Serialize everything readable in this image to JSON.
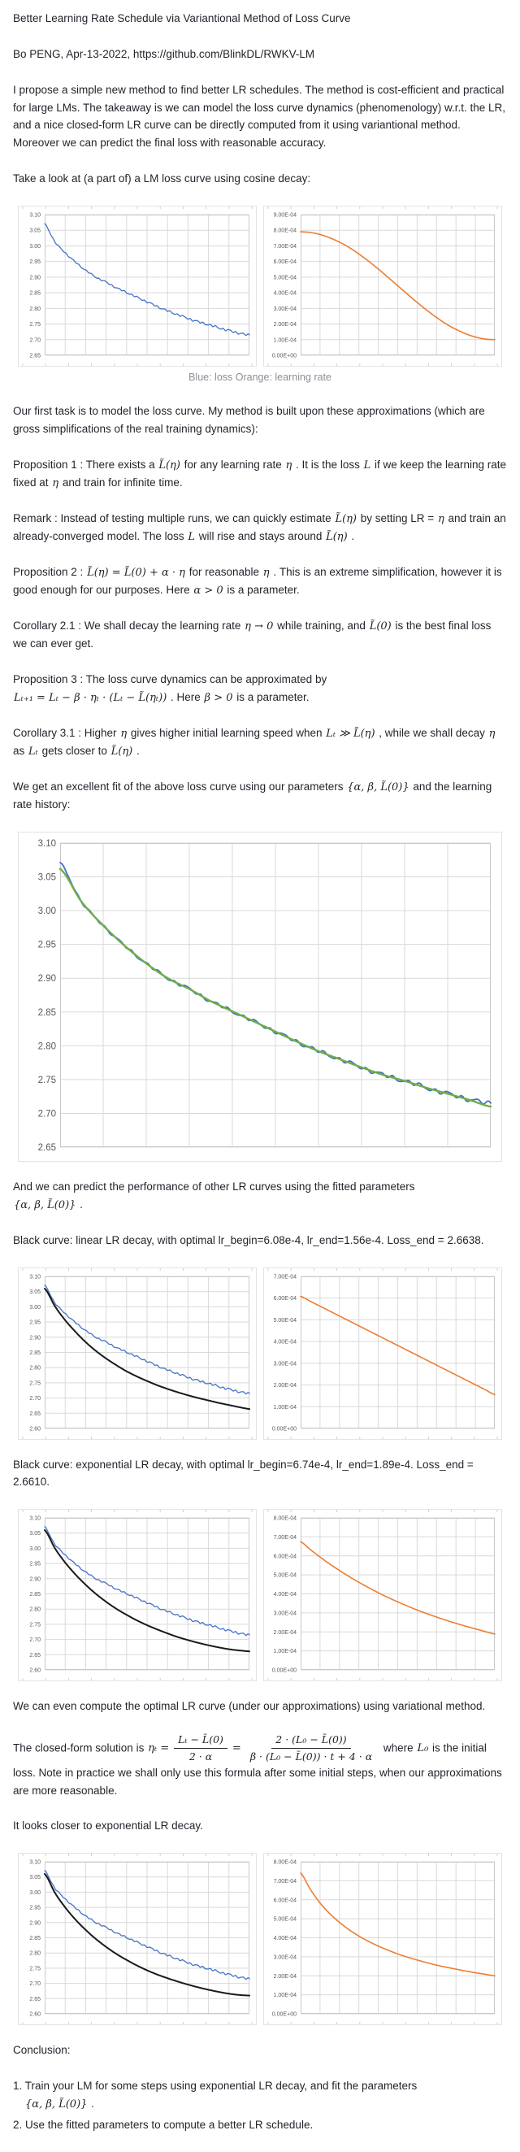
{
  "texts": {
    "title": "Better Learning Rate Schedule via Variantional Method of Loss Curve",
    "byline": "Bo PENG, Apr-13-2022, https://github.com/BlinkDL/RWKV-LM",
    "p_intro": "I propose a simple new method to find better LR schedules. The method is cost-efficient and practical for large LMs. The takeaway is we can model the loss curve dynamics (phenomenology) w.r.t. the LR, and a nice closed-form LR curve can be directly computed from it using variantional method. Moreover we can predict the final loss with reasonable accuracy.",
    "p_take_look": "Take a look at (a part of) a LM loss curve using cosine decay:",
    "caption_pair1": "Blue: loss Orange: learning rate",
    "p_first_task": "Our first task is to model the loss curve. My method is built upon these approximations (which are gross simplifications of the real training dynamics):",
    "p_black_linear": "Black curve: linear LR decay, with optimal lr_begin=6.08e-4, lr_end=1.56e-4. Loss_end = 2.6638.",
    "p_black_exp": "Black curve: exponential LR decay, with optimal lr_begin=6.74e-4, lr_end=1.89e-4. Loss_end = 2.6610.",
    "p_variational": "We can even compute the optimal LR curve (under our approximations) using variational method.",
    "p_closer_exp": "It looks closer to exponential LR decay.",
    "conclusion_heading": "Conclusion:"
  },
  "rich": {
    "prop1": [
      [
        "t",
        "Proposition 1 : There exists a "
      ],
      [
        "m",
        "L̃(η)"
      ],
      [
        "t",
        " for any learning rate "
      ],
      [
        "m",
        "η"
      ],
      [
        "t",
        " . It is the loss "
      ],
      [
        "m",
        "L"
      ],
      [
        "t",
        " if we keep the learning rate fixed at "
      ],
      [
        "m",
        "η"
      ],
      [
        "t",
        " and train for infinite time."
      ]
    ],
    "remark": [
      [
        "t",
        "Remark : Instead of testing multiple runs, we can quickly estimate "
      ],
      [
        "m",
        "L̃(η)"
      ],
      [
        "t",
        " by setting LR = "
      ],
      [
        "m",
        "η"
      ],
      [
        "t",
        " and train an already-converged model. The loss "
      ],
      [
        "m",
        "L"
      ],
      [
        "t",
        " will rise and stays around "
      ],
      [
        "m",
        "L̃(η)"
      ],
      [
        "t",
        " ."
      ]
    ],
    "prop2": [
      [
        "t",
        "Proposition 2 : "
      ],
      [
        "m",
        "L̃(η) = L̃(0) + α · η"
      ],
      [
        "t",
        " for reasonable "
      ],
      [
        "m",
        "η"
      ],
      [
        "t",
        " . This is an extreme simplification, however it is good enough for our purposes. Here "
      ],
      [
        "m",
        "α > 0"
      ],
      [
        "t",
        " is a parameter."
      ]
    ],
    "cor21": [
      [
        "t",
        "Corollary 2.1 : We shall decay the learning rate "
      ],
      [
        "m",
        "η → 0"
      ],
      [
        "t",
        " while training, and "
      ],
      [
        "m",
        "L̃(0)"
      ],
      [
        "t",
        " is the best final loss we can ever get."
      ]
    ],
    "prop3": [
      [
        "t",
        "Proposition 3 : The loss curve dynamics can be approximated by "
      ],
      [
        "b"
      ],
      [
        "m",
        "Lₜ₊₁ = Lₜ − β · ηₜ · (Lₜ − L̃(ηₜ))"
      ],
      [
        "t",
        " . Here "
      ],
      [
        "m",
        "β > 0"
      ],
      [
        "t",
        " is a parameter."
      ]
    ],
    "cor31": [
      [
        "t",
        "Corollary 3.1 : Higher "
      ],
      [
        "m",
        "η"
      ],
      [
        "t",
        " gives higher initial learning speed when "
      ],
      [
        "m",
        "Lₜ ≫ L̃(η)"
      ],
      [
        "t",
        " , while we shall decay "
      ],
      [
        "m",
        "η"
      ],
      [
        "t",
        " as "
      ],
      [
        "m",
        "Lₜ"
      ],
      [
        "t",
        " gets closer to "
      ],
      [
        "m",
        "L̃(η)"
      ],
      [
        "t",
        " ."
      ]
    ],
    "p_fit": [
      [
        "t",
        "We get an excellent fit of the above loss curve using our parameters "
      ],
      [
        "m",
        "{α, β, L̃(0)}"
      ],
      [
        "t",
        " and the learning rate history:"
      ]
    ],
    "p_predict": [
      [
        "t",
        "And we can predict the performance of other LR curves using the fitted parameters "
      ],
      [
        "b"
      ],
      [
        "m",
        "{α, β, L̃(0)}"
      ],
      [
        "t",
        " ."
      ]
    ],
    "formula": [
      [
        "t",
        "The closed-form solution is "
      ],
      [
        "m",
        "ηₜ ="
      ],
      [
        "f",
        "Lₜ − L̃(0)",
        "2 · α"
      ],
      [
        "m",
        "="
      ],
      [
        "f",
        "2 · (L₀ − L̃(0))",
        "β · (L₀ − L̃(0)) · t + 4 · α"
      ],
      [
        "t",
        " where "
      ],
      [
        "m",
        "L₀"
      ],
      [
        "t",
        " is the initial loss. Note in practice we shall only use this formula after some initial steps, when our approximations are more reasonable."
      ]
    ],
    "item1": [
      [
        "t",
        "1. Train your LM for some steps using exponential LR decay, and fit the parameters "
      ],
      [
        "b"
      ],
      [
        "i"
      ],
      [
        "m",
        "{α, β, L̃(0)}"
      ],
      [
        "t",
        " ."
      ]
    ],
    "item2": [
      [
        "t",
        "2. Use the fitted parameters to compute a better LR schedule."
      ]
    ]
  },
  "colors": {
    "loss_blue": "#4472C4",
    "lr_orange": "#ED7D31",
    "fit_green": "#70AD47",
    "predicted_black": "#1a1a1a",
    "gridline": "#d9d9d9",
    "plot_border": "#c9c9c9",
    "box_border": "#e4e4e4",
    "tick_label": "#595959",
    "caption_gray": "#8a8f98"
  },
  "chart_data": [
    {
      "id": "pair1-loss",
      "type": "line",
      "title": "LM loss curve (cosine decay)",
      "ymin": 2.65,
      "ymax": 3.1,
      "xdiv": 10,
      "grid": true,
      "legend": "none",
      "yticks": [
        "3.10",
        "3.05",
        "3.00",
        "2.95",
        "2.90",
        "2.85",
        "2.80",
        "2.75",
        "2.70",
        "2.65"
      ],
      "series": [
        {
          "name": "training loss (cosine LR)",
          "color": "#4472C4",
          "noisy": true,
          "noise_amp": 0.0036,
          "width": 1.3,
          "values": [
            3.07,
            3.013,
            2.978,
            2.948,
            2.922,
            2.9,
            2.884,
            2.866,
            2.851,
            2.836,
            2.821,
            2.806,
            2.792,
            2.78,
            2.768,
            2.757,
            2.748,
            2.738,
            2.729,
            2.721,
            2.714
          ]
        }
      ]
    },
    {
      "id": "pair1-lr",
      "type": "line",
      "title": "learning rate (cosine decay)",
      "ymin": 0,
      "ymax": 0.0009,
      "xdiv": 10,
      "grid": true,
      "legend": "none",
      "yticks": [
        "9.00E-04",
        "8.00E-04",
        "7.00E-04",
        "6.00E-04",
        "5.00E-04",
        "4.00E-04",
        "3.00E-04",
        "2.00E-04",
        "1.00E-04",
        "0.00E+00"
      ],
      "series": [
        {
          "name": "learning rate (cosine decay)",
          "color": "#ED7D31",
          "noisy": false,
          "width": 1.6,
          "values": [
            0.00079,
            0.000786,
            0.000773,
            0.000752,
            0.000724,
            0.00069,
            0.000648,
            0.000602,
            0.000552,
            0.000499,
            0.000445,
            0.000391,
            0.000338,
            0.000288,
            0.000242,
            0.0002,
            0.000166,
            0.000138,
            0.000117,
            0.000104,
            0.0001
          ]
        }
      ]
    },
    {
      "id": "fit-full",
      "type": "line",
      "title": "model fit of loss curve",
      "ymin": 2.65,
      "ymax": 3.1,
      "xdiv": 10,
      "grid": true,
      "legend": "none",
      "yticks": [
        "3.10",
        "3.05",
        "3.00",
        "2.95",
        "2.90",
        "2.85",
        "2.80",
        "2.75",
        "2.70",
        "2.65"
      ],
      "series": [
        {
          "name": "training loss (cosine LR)",
          "color": "#4472C4",
          "noisy": true,
          "noise_amp": 0.0036,
          "width": 1.8,
          "values": [
            3.07,
            3.013,
            2.978,
            2.948,
            2.922,
            2.9,
            2.884,
            2.866,
            2.851,
            2.836,
            2.821,
            2.806,
            2.792,
            2.78,
            2.768,
            2.757,
            2.748,
            2.738,
            2.729,
            2.721,
            2.714
          ]
        },
        {
          "name": "model fit {α, β, L̃(0)}",
          "color": "#70AD47",
          "noisy": false,
          "width": 2.4,
          "values": [
            3.062,
            3.013,
            2.978,
            2.948,
            2.922,
            2.9,
            2.884,
            2.866,
            2.851,
            2.836,
            2.821,
            2.806,
            2.792,
            2.78,
            2.768,
            2.757,
            2.748,
            2.738,
            2.729,
            2.72,
            2.71
          ]
        }
      ]
    },
    {
      "id": "pair2-loss",
      "type": "line",
      "title": "predicted loss, linear LR decay (black) vs actual (blue)",
      "ymin": 2.6,
      "ymax": 3.1,
      "xdiv": 10,
      "grid": true,
      "legend": "none",
      "yticks": [
        "3.10",
        "3.05",
        "3.00",
        "2.95",
        "2.90",
        "2.85",
        "2.80",
        "2.75",
        "2.70",
        "2.65",
        "2.60"
      ],
      "series": [
        {
          "name": "training loss (cosine LR)",
          "color": "#4472C4",
          "noisy": true,
          "noise_amp": 0.0036,
          "width": 1.3,
          "values": [
            3.07,
            3.013,
            2.978,
            2.948,
            2.922,
            2.9,
            2.884,
            2.866,
            2.851,
            2.836,
            2.821,
            2.806,
            2.792,
            2.78,
            2.768,
            2.757,
            2.748,
            2.738,
            2.729,
            2.721,
            2.714
          ]
        },
        {
          "name": "predicted loss (linear LR decay), Loss_end = 2.6638",
          "color": "#1a1a1a",
          "noisy": false,
          "width": 2,
          "values": [
            3.06,
            3.002,
            2.956,
            2.918,
            2.884,
            2.855,
            2.83,
            2.808,
            2.788,
            2.771,
            2.756,
            2.742,
            2.73,
            2.719,
            2.709,
            2.7,
            2.692,
            2.684,
            2.677,
            2.67,
            2.664
          ]
        }
      ]
    },
    {
      "id": "pair2-lr",
      "type": "line",
      "title": "linear LR decay, lr_begin=6.08e-4 lr_end=1.56e-4",
      "ymin": 0,
      "ymax": 0.0007,
      "xdiv": 10,
      "grid": true,
      "legend": "none",
      "yticks": [
        "7.00E-04",
        "6.00E-04",
        "5.00E-04",
        "4.00E-04",
        "3.00E-04",
        "2.00E-04",
        "1.00E-04",
        "0.00E+00"
      ],
      "series": [
        {
          "name": "linear LR decay",
          "color": "#ED7D31",
          "noisy": false,
          "width": 1.6,
          "values": [
            0.000608,
            0.0005854,
            0.0005628,
            0.0005402,
            0.0005176,
            0.000495,
            0.0004724,
            0.0004498,
            0.0004272,
            0.0004046,
            0.000382,
            0.0003594,
            0.0003368,
            0.0003142,
            0.0002916,
            0.000269,
            0.0002464,
            0.0002238,
            0.0002012,
            0.0001786,
            0.000156
          ]
        }
      ]
    },
    {
      "id": "pair3-loss",
      "type": "line",
      "title": "predicted loss, exponential LR decay (black) vs actual (blue)",
      "ymin": 2.6,
      "ymax": 3.1,
      "xdiv": 10,
      "grid": true,
      "legend": "none",
      "yticks": [
        "3.10",
        "3.05",
        "3.00",
        "2.95",
        "2.90",
        "2.85",
        "2.80",
        "2.75",
        "2.70",
        "2.65",
        "2.60"
      ],
      "series": [
        {
          "name": "training loss (cosine LR)",
          "color": "#4472C4",
          "noisy": true,
          "noise_amp": 0.0036,
          "width": 1.3,
          "values": [
            3.07,
            3.013,
            2.978,
            2.948,
            2.922,
            2.9,
            2.884,
            2.866,
            2.851,
            2.836,
            2.821,
            2.806,
            2.792,
            2.78,
            2.768,
            2.757,
            2.748,
            2.738,
            2.729,
            2.721,
            2.714
          ]
        },
        {
          "name": "predicted loss (exponential LR decay), Loss_end = 2.6610",
          "color": "#1a1a1a",
          "noisy": false,
          "width": 2,
          "values": [
            3.06,
            3.0,
            2.953,
            2.914,
            2.88,
            2.85,
            2.824,
            2.801,
            2.781,
            2.763,
            2.747,
            2.733,
            2.72,
            2.708,
            2.698,
            2.689,
            2.681,
            2.674,
            2.668,
            2.664,
            2.661
          ]
        }
      ]
    },
    {
      "id": "pair3-lr",
      "type": "line",
      "title": "exponential LR decay, lr_begin=6.74e-4 lr_end=1.89e-4",
      "ymin": 0,
      "ymax": 0.0008,
      "xdiv": 10,
      "grid": true,
      "legend": "none",
      "yticks": [
        "8.00E-04",
        "7.00E-04",
        "6.00E-04",
        "5.00E-04",
        "4.00E-04",
        "3.00E-04",
        "2.00E-04",
        "1.00E-04",
        "0.00E+00"
      ],
      "series": [
        {
          "name": "exponential LR decay",
          "color": "#ED7D31",
          "noisy": false,
          "width": 1.6,
          "values": [
            0.000674,
            0.000633,
            0.000594,
            0.000557,
            0.000523,
            0.000491,
            0.000461,
            0.000433,
            0.000406,
            0.000381,
            0.000358,
            0.000336,
            0.000315,
            0.000296,
            0.000278,
            0.000261,
            0.000245,
            0.00023,
            0.000216,
            0.000202,
            0.000189
          ]
        }
      ]
    },
    {
      "id": "pair4-loss",
      "type": "line",
      "title": "predicted loss, optimal closed-form LR (black) vs actual (blue)",
      "ymin": 2.6,
      "ymax": 3.1,
      "xdiv": 10,
      "grid": true,
      "legend": "none",
      "yticks": [
        "3.10",
        "3.05",
        "3.00",
        "2.95",
        "2.90",
        "2.85",
        "2.80",
        "2.75",
        "2.70",
        "2.65",
        "2.60"
      ],
      "series": [
        {
          "name": "training loss (cosine LR)",
          "color": "#4472C4",
          "noisy": true,
          "noise_amp": 0.0036,
          "width": 1.3,
          "values": [
            3.07,
            3.013,
            2.978,
            2.948,
            2.922,
            2.9,
            2.884,
            2.866,
            2.851,
            2.836,
            2.821,
            2.806,
            2.792,
            2.78,
            2.768,
            2.757,
            2.748,
            2.738,
            2.729,
            2.721,
            2.714
          ]
        },
        {
          "name": "predicted loss (optimal closed-form LR)",
          "color": "#1a1a1a",
          "noisy": false,
          "width": 2,
          "values": [
            3.06,
            2.998,
            2.95,
            2.91,
            2.876,
            2.846,
            2.82,
            2.797,
            2.777,
            2.759,
            2.743,
            2.729,
            2.717,
            2.706,
            2.696,
            2.687,
            2.679,
            2.672,
            2.666,
            2.662,
            2.66
          ]
        }
      ]
    },
    {
      "id": "pair4-lr",
      "type": "line",
      "title": "optimal closed-form LR curve",
      "ymin": 0,
      "ymax": 0.0008,
      "xdiv": 10,
      "grid": true,
      "legend": "none",
      "yticks": [
        "8.00E-04",
        "7.00E-04",
        "6.00E-04",
        "5.00E-04",
        "4.00E-04",
        "3.00E-04",
        "2.00E-04",
        "1.00E-04",
        "0.00E+00"
      ],
      "series": [
        {
          "name": "optimal LR (closed-form variational solution)",
          "color": "#ED7D31",
          "noisy": false,
          "width": 1.6,
          "values": [
            0.00074,
            0.000655,
            0.000583,
            0.000527,
            0.000481,
            0.000442,
            0.000409,
            0.000381,
            0.000356,
            0.000335,
            0.000315,
            0.000298,
            0.000283,
            0.000269,
            0.000256,
            0.000245,
            0.000235,
            0.000225,
            0.000216,
            0.000208,
            0.0002
          ]
        }
      ]
    }
  ]
}
